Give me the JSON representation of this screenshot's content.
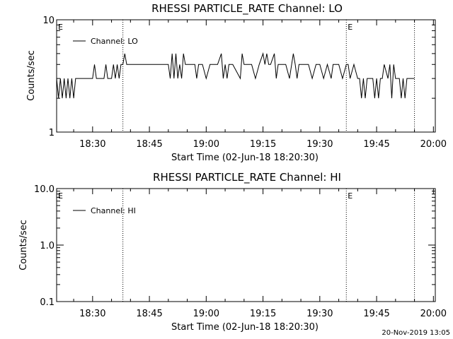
{
  "footer_timestamp": "20-Nov-2019 13:05",
  "chart_data": [
    {
      "type": "line",
      "title": "RHESSI PARTICLE_RATE Channel: LO",
      "xlabel": "Start Time (02-Jun-18 18:20:30)",
      "ylabel": "Counts/sec",
      "yscale": "log",
      "ylim": [
        1,
        10
      ],
      "xlim": [
        "18:20:30",
        "20:00:30"
      ],
      "x_ticks": [
        "18:30",
        "18:45",
        "19:00",
        "19:15",
        "19:30",
        "19:45",
        "20:00"
      ],
      "y_ticks": [
        "1",
        "10"
      ],
      "legend": "top-left",
      "grid": false,
      "markers": [
        {
          "label": "E",
          "time": "18:20:30"
        },
        {
          "label": "E",
          "time": "19:37"
        }
      ],
      "vlines": [
        "18:38",
        "19:37",
        "19:55"
      ],
      "series": [
        {
          "name": "Channel: LO",
          "x": [
            "18:20:30",
            "18:21",
            "18:21:30",
            "18:22",
            "18:22:30",
            "18:23",
            "18:23:30",
            "18:24",
            "18:24:30",
            "18:25",
            "18:25:30",
            "18:26",
            "18:30",
            "18:30:30",
            "18:31",
            "18:33",
            "18:33:30",
            "18:34",
            "18:35",
            "18:35:30",
            "18:36",
            "18:36:30",
            "18:37",
            "18:37:30",
            "18:38",
            "18:38:30",
            "18:39",
            "18:45",
            "18:50",
            "18:50:30",
            "18:51",
            "18:51:30",
            "18:52",
            "18:52:30",
            "18:53",
            "18:53:30",
            "18:54",
            "18:54:30",
            "18:55",
            "18:57",
            "18:57:30",
            "18:58",
            "18:59",
            "19:00",
            "19:01",
            "19:03",
            "19:04",
            "19:04:30",
            "19:05",
            "19:05:30",
            "19:06",
            "19:07",
            "19:09",
            "19:09:30",
            "19:10",
            "19:12",
            "19:13",
            "19:14",
            "19:15",
            "19:15:30",
            "19:16",
            "19:16:30",
            "19:17",
            "19:18",
            "19:18:30",
            "19:19",
            "19:21",
            "19:22",
            "19:23",
            "19:23:30",
            "19:24",
            "19:24:30",
            "19:25",
            "19:27",
            "19:28",
            "19:29",
            "19:30",
            "19:31",
            "19:32",
            "19:33",
            "19:33:30",
            "19:34",
            "19:35",
            "19:36",
            "19:37",
            "19:37:30",
            "19:38",
            "19:39",
            "19:40",
            "19:40:30",
            "19:41",
            "19:41:30",
            "19:42",
            "19:42:30",
            "19:43",
            "19:44",
            "19:44:30",
            "19:45",
            "19:45:30",
            "19:46",
            "19:46:30",
            "19:47",
            "19:48",
            "19:48:30",
            "19:49",
            "19:49:30",
            "19:50",
            "19:50:30",
            "19:51",
            "19:51:30",
            "19:52",
            "19:52:30",
            "19:53",
            "19:54",
            "19:55"
          ],
          "y": [
            3,
            2,
            3,
            2,
            3,
            2,
            3,
            2,
            3,
            2,
            3,
            3,
            3,
            4,
            3,
            3,
            4,
            3,
            3,
            4,
            3,
            4,
            3,
            4,
            4,
            5,
            4,
            4,
            4,
            3,
            5,
            3,
            5,
            3,
            4,
            3,
            5,
            4,
            4,
            4,
            3,
            4,
            4,
            3,
            4,
            4,
            5,
            3,
            4,
            3,
            4,
            4,
            3,
            5,
            4,
            4,
            3,
            4,
            5,
            4,
            5,
            4,
            4,
            5,
            3,
            4,
            4,
            3,
            5,
            4,
            3,
            4,
            4,
            4,
            3,
            4,
            4,
            3,
            4,
            3,
            4,
            4,
            4,
            3,
            4,
            4,
            3,
            4,
            3,
            3,
            2,
            3,
            2,
            3,
            3,
            3,
            2,
            3,
            2,
            3,
            3,
            4,
            3,
            4,
            2,
            4,
            3,
            3,
            3,
            2,
            3,
            2,
            3,
            3,
            3
          ]
        }
      ]
    },
    {
      "type": "line",
      "title": "RHESSI PARTICLE_RATE Channel: HI",
      "xlabel": "Start Time (02-Jun-18 18:20:30)",
      "ylabel": "Counts/sec",
      "yscale": "log",
      "ylim": [
        0.1,
        10
      ],
      "xlim": [
        "18:20:30",
        "20:00:30"
      ],
      "x_ticks": [
        "18:30",
        "18:45",
        "19:00",
        "19:15",
        "19:30",
        "19:45",
        "20:00"
      ],
      "y_ticks": [
        "0.1",
        "1.0",
        "10.0"
      ],
      "legend": "top-left",
      "grid": false,
      "markers": [
        {
          "label": "E",
          "time": "18:20:30"
        },
        {
          "label": "E",
          "time": "19:37"
        }
      ],
      "vlines": [
        "18:38",
        "19:37",
        "19:55"
      ],
      "series": [
        {
          "name": "Channel: HI",
          "x": [],
          "y": []
        }
      ]
    }
  ]
}
